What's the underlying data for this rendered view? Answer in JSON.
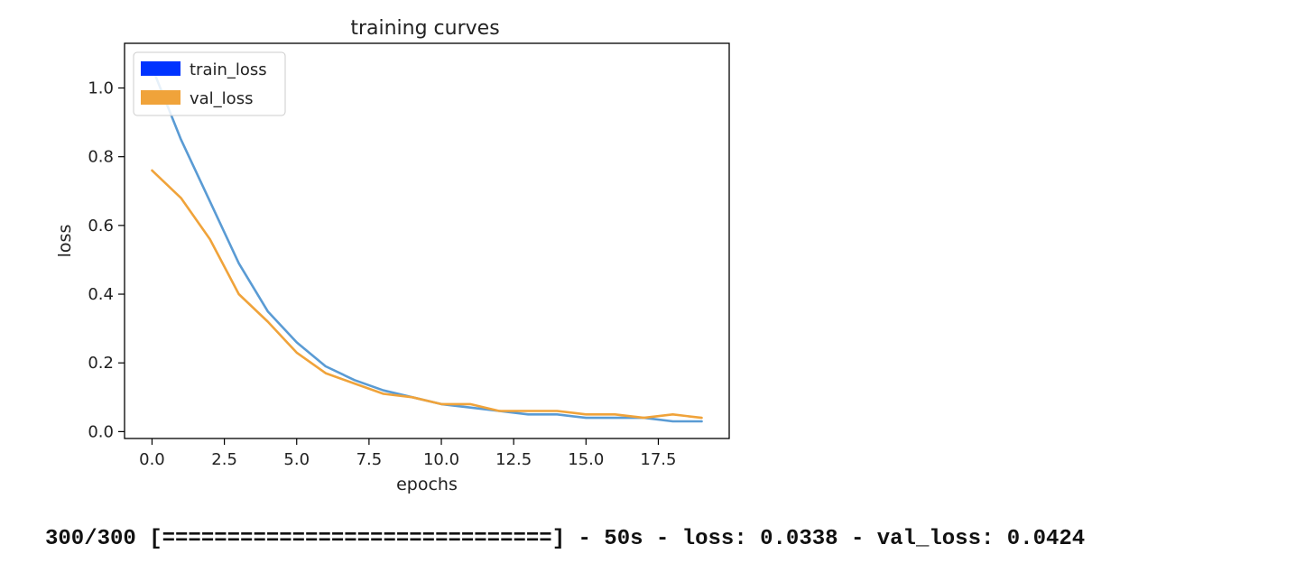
{
  "chart_data": {
    "type": "line",
    "title": "training curves",
    "xlabel": "epochs",
    "ylabel": "loss",
    "xlim": [
      -0.95,
      19.95
    ],
    "ylim": [
      -0.02,
      1.13
    ],
    "xticks": [
      0.0,
      2.5,
      5.0,
      7.5,
      10.0,
      12.5,
      15.0,
      17.5
    ],
    "xtick_labels": [
      "0.0",
      "2.5",
      "5.0",
      "7.5",
      "10.0",
      "12.5",
      "15.0",
      "17.5"
    ],
    "yticks": [
      0.0,
      0.2,
      0.4,
      0.6,
      0.8,
      1.0
    ],
    "ytick_labels": [
      "0.0",
      "0.2",
      "0.4",
      "0.6",
      "0.8",
      "1.0"
    ],
    "grid": false,
    "legend_position": "top-left",
    "x": [
      0,
      1,
      2,
      3,
      4,
      5,
      6,
      7,
      8,
      9,
      10,
      11,
      12,
      13,
      14,
      15,
      16,
      17,
      18,
      19
    ],
    "series": [
      {
        "name": "train_loss",
        "color": "#5a9bd4",
        "legend_color": "#0033ff",
        "values": [
          1.06,
          0.85,
          0.67,
          0.49,
          0.35,
          0.26,
          0.19,
          0.15,
          0.12,
          0.1,
          0.08,
          0.07,
          0.06,
          0.05,
          0.05,
          0.04,
          0.04,
          0.04,
          0.03,
          0.03
        ]
      },
      {
        "name": "val_loss",
        "color": "#f0a33a",
        "legend_color": "#f0a33a",
        "values": [
          0.76,
          0.68,
          0.56,
          0.4,
          0.32,
          0.23,
          0.17,
          0.14,
          0.11,
          0.1,
          0.08,
          0.08,
          0.06,
          0.06,
          0.06,
          0.05,
          0.05,
          0.04,
          0.05,
          0.04
        ]
      }
    ]
  },
  "status": {
    "text": "300/300 [==============================] - 50s - loss: 0.0338 - val_loss: 0.0424"
  }
}
